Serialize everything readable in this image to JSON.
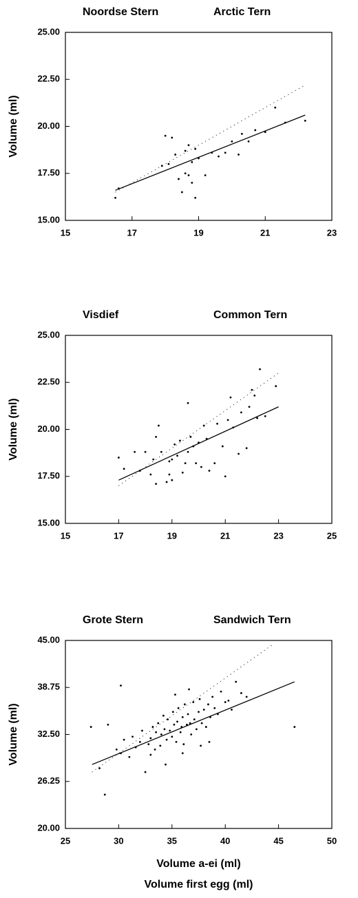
{
  "chart_data": [
    {
      "type": "scatter",
      "title": [
        "Noordse Stern",
        "Arctic Tern"
      ],
      "ylabel": "Volume (ml)",
      "xlim": [
        15,
        23
      ],
      "ylim": [
        15,
        25
      ],
      "xticks": [
        15,
        17,
        19,
        21,
        23
      ],
      "yticks": [
        {
          "value": 15,
          "label": "15.00"
        },
        {
          "value": 17.5,
          "label": "17.50"
        },
        {
          "value": 20,
          "label": "20.00"
        },
        {
          "value": 22.5,
          "label": "22.50"
        },
        {
          "value": 25,
          "label": "25.00"
        }
      ],
      "series": [
        {
          "mark": "point",
          "color": "#000000",
          "x": [
            16.5,
            16.6,
            17.9,
            18.0,
            18.1,
            18.2,
            18.3,
            18.4,
            18.5,
            18.6,
            18.6,
            18.7,
            18.7,
            18.8,
            18.8,
            18.9,
            18.9,
            19.0,
            19.2,
            19.4,
            19.6,
            19.8,
            20.0,
            20.2,
            20.3,
            20.5,
            20.7,
            21.0,
            21.3,
            21.6,
            22.2
          ],
          "values": [
            16.2,
            16.7,
            17.9,
            19.5,
            18.0,
            19.4,
            18.5,
            17.2,
            16.5,
            18.7,
            17.5,
            19.0,
            17.4,
            18.1,
            17.0,
            16.2,
            18.8,
            18.3,
            17.4,
            18.6,
            18.4,
            18.6,
            19.2,
            18.5,
            19.6,
            19.2,
            19.8,
            19.7,
            21.0,
            20.2,
            20.3
          ]
        },
        {
          "mark": "line",
          "color": "#000000",
          "x": [
            16.5,
            22.2
          ],
          "values": [
            16.6,
            20.6
          ]
        },
        {
          "mark": "dotted",
          "color": "#000000",
          "x": [
            16.5,
            22.2
          ],
          "values": [
            16.5,
            22.2
          ]
        }
      ]
    },
    {
      "type": "scatter",
      "title": [
        "Visdief",
        "Common Tern"
      ],
      "ylabel": "Volume (ml)",
      "xlim": [
        15,
        25
      ],
      "ylim": [
        15,
        25
      ],
      "xticks": [
        15,
        17,
        19,
        21,
        23,
        25
      ],
      "yticks": [
        {
          "value": 15,
          "label": "15.00"
        },
        {
          "value": 17.5,
          "label": "17.50"
        },
        {
          "value": 20,
          "label": "20.00"
        },
        {
          "value": 22.5,
          "label": "22.50"
        },
        {
          "value": 25,
          "label": "25.00"
        }
      ],
      "series": [
        {
          "mark": "point",
          "color": "#000000",
          "x": [
            17.0,
            17.2,
            17.6,
            17.8,
            18.0,
            18.2,
            18.3,
            18.4,
            18.5,
            18.6,
            18.8,
            18.9,
            19.0,
            19.0,
            19.1,
            19.2,
            19.3,
            19.5,
            19.6,
            19.6,
            19.7,
            19.8,
            19.9,
            20.0,
            20.1,
            20.2,
            20.4,
            20.6,
            20.7,
            20.9,
            21.0,
            21.2,
            21.3,
            21.5,
            21.6,
            21.8,
            22.0,
            22.1,
            22.2,
            22.3,
            22.5,
            22.9,
            18.4,
            18.9,
            19.4,
            20.3,
            21.1,
            21.9
          ],
          "values": [
            18.5,
            17.9,
            18.8,
            17.8,
            18.8,
            17.6,
            18.4,
            17.1,
            20.2,
            18.8,
            17.2,
            17.6,
            18.4,
            17.3,
            19.2,
            18.6,
            19.4,
            18.2,
            21.4,
            18.8,
            19.6,
            19.1,
            18.2,
            19.3,
            18.0,
            20.2,
            17.8,
            18.2,
            20.3,
            19.1,
            17.5,
            21.7,
            20.1,
            18.7,
            20.9,
            19.0,
            22.1,
            21.8,
            20.6,
            23.2,
            20.7,
            22.3,
            19.6,
            18.3,
            17.7,
            19.5,
            20.5,
            21.2
          ]
        },
        {
          "mark": "line",
          "color": "#000000",
          "x": [
            17.0,
            23.0
          ],
          "values": [
            17.3,
            21.2
          ]
        },
        {
          "mark": "dotted",
          "color": "#000000",
          "x": [
            17.0,
            23.0
          ],
          "values": [
            17.0,
            23.0
          ]
        }
      ]
    },
    {
      "type": "scatter",
      "title": [
        "Grote Stern",
        "Sandwich Tern"
      ],
      "ylabel": "Volume (ml)",
      "xlabel": [
        "Volume a-ei (ml)",
        "Volume first egg (ml)"
      ],
      "xlim": [
        25,
        50
      ],
      "ylim": [
        20,
        45
      ],
      "xticks": [
        25,
        30,
        35,
        40,
        45,
        50
      ],
      "yticks": [
        {
          "value": 20,
          "label": "20.00"
        },
        {
          "value": 26.25,
          "label": "26.25"
        },
        {
          "value": 32.5,
          "label": "32.50"
        },
        {
          "value": 38.75,
          "label": "38.75"
        },
        {
          "value": 45,
          "label": "45.00"
        }
      ],
      "series": [
        {
          "mark": "point",
          "color": "#000000",
          "x": [
            27.4,
            28.2,
            28.7,
            29.0,
            29.8,
            30.2,
            30.5,
            31.0,
            31.3,
            31.6,
            32.0,
            32.2,
            32.5,
            32.8,
            33.0,
            33.2,
            33.4,
            33.5,
            33.7,
            33.9,
            34.0,
            34.2,
            34.3,
            34.5,
            34.6,
            34.8,
            35.0,
            35.1,
            35.2,
            35.4,
            35.5,
            35.6,
            35.8,
            35.9,
            36.0,
            36.1,
            36.2,
            36.4,
            36.5,
            36.7,
            36.8,
            37.0,
            37.1,
            37.3,
            37.5,
            37.6,
            37.8,
            38.0,
            38.2,
            38.4,
            38.6,
            38.8,
            39.0,
            39.3,
            39.6,
            40.0,
            40.3,
            40.6,
            41.0,
            41.5,
            42.0,
            46.5,
            30.2,
            36.0,
            38.5,
            33.0,
            34.4,
            35.3,
            36.6,
            37.7
          ],
          "values": [
            33.5,
            28.0,
            24.5,
            33.8,
            30.5,
            39.0,
            31.8,
            29.5,
            32.2,
            30.8,
            31.5,
            33.0,
            27.5,
            31.2,
            32.0,
            33.5,
            30.5,
            32.8,
            34.0,
            31.0,
            32.5,
            35.0,
            33.2,
            31.8,
            34.5,
            33.0,
            32.2,
            35.5,
            33.8,
            31.5,
            34.2,
            36.0,
            32.8,
            33.5,
            34.8,
            31.2,
            36.5,
            33.8,
            35.2,
            34.0,
            32.5,
            36.8,
            34.5,
            33.2,
            35.5,
            37.2,
            34.0,
            35.8,
            33.5,
            36.5,
            34.8,
            37.5,
            36.0,
            35.2,
            38.2,
            36.8,
            37.0,
            35.8,
            39.5,
            38.0,
            37.5,
            33.5,
            30.0,
            30.0,
            31.5,
            29.8,
            28.5,
            37.8,
            38.5,
            31.0
          ]
        },
        {
          "mark": "line",
          "color": "#000000",
          "x": [
            27.5,
            46.5
          ],
          "values": [
            28.5,
            39.5
          ]
        },
        {
          "mark": "dotted",
          "color": "#000000",
          "x": [
            27.5,
            44.5
          ],
          "values": [
            27.5,
            44.5
          ]
        }
      ]
    }
  ]
}
